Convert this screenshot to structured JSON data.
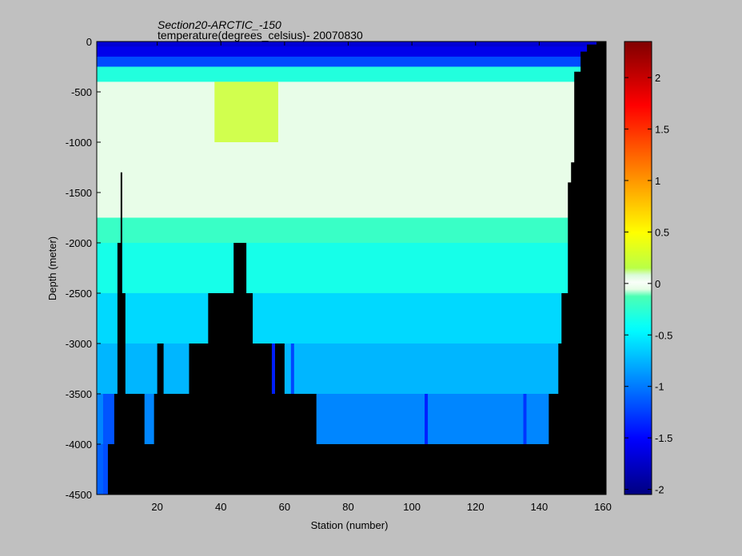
{
  "chart_data": {
    "type": "heatmap",
    "title": "Section20-ARCTIC_-150",
    "subtitle": "temperature(degrees_celsius)- 20070830",
    "xlabel": "Station (number)",
    "ylabel": "Depth (meter)",
    "xlim": [
      1,
      161
    ],
    "ylim": [
      -4500,
      0
    ],
    "x_ticks": [
      20,
      40,
      60,
      80,
      100,
      120,
      140,
      160
    ],
    "y_ticks": [
      0,
      -500,
      -1000,
      -1500,
      -2000,
      -2500,
      -3000,
      -3500,
      -4000,
      -4500
    ],
    "colorbar": {
      "range": [
        -2.05,
        2.35
      ],
      "ticks": [
        2,
        1.5,
        1,
        0.5,
        0,
        -0.5,
        -1,
        -1.5,
        -2
      ]
    },
    "layers": [
      {
        "depth_top": 0,
        "depth_bottom": -50,
        "temperature": -1.7
      },
      {
        "depth_top": -50,
        "depth_bottom": -150,
        "temperature": -1.6
      },
      {
        "depth_top": -150,
        "depth_bottom": -250,
        "temperature": -1.2
      },
      {
        "depth_top": -250,
        "depth_bottom": -400,
        "temperature": -0.3
      },
      {
        "depth_top": -400,
        "depth_bottom": -1750,
        "temperature": 0.05
      },
      {
        "depth_top": -1750,
        "depth_bottom": -2000,
        "temperature": -0.2
      },
      {
        "depth_top": -2000,
        "depth_bottom": -2500,
        "temperature": -0.35
      },
      {
        "depth_top": -2500,
        "depth_bottom": -3000,
        "temperature": -0.6
      },
      {
        "depth_top": -3000,
        "depth_bottom": -3500,
        "temperature": -0.75
      },
      {
        "depth_top": -3500,
        "depth_bottom": -4000,
        "temperature": -0.95
      },
      {
        "depth_top": -4000,
        "depth_bottom": -4500,
        "temperature": -1.1
      }
    ],
    "bottom_depth_profile": [
      [
        1,
        -4500
      ],
      [
        4.5,
        -4500
      ],
      [
        4.5,
        -4000
      ],
      [
        6.5,
        -4000
      ],
      [
        6.5,
        -3500
      ],
      [
        7.5,
        -3500
      ],
      [
        7.5,
        -2000
      ],
      [
        8.5,
        -2000
      ],
      [
        8.5,
        -1300
      ],
      [
        9,
        -1300
      ],
      [
        9,
        -2500
      ],
      [
        10,
        -2500
      ],
      [
        10,
        -3500
      ],
      [
        16,
        -3500
      ],
      [
        16,
        -4000
      ],
      [
        19,
        -4000
      ],
      [
        19,
        -3500
      ],
      [
        20,
        -3500
      ],
      [
        20,
        -3000
      ],
      [
        22,
        -3000
      ],
      [
        22,
        -3500
      ],
      [
        30,
        -3500
      ],
      [
        30,
        -3000
      ],
      [
        36,
        -3000
      ],
      [
        36,
        -2500
      ],
      [
        44,
        -2500
      ],
      [
        44,
        -2000
      ],
      [
        48,
        -2000
      ],
      [
        48,
        -2500
      ],
      [
        50,
        -2500
      ],
      [
        50,
        -3000
      ],
      [
        56,
        -3000
      ],
      [
        56,
        -3500
      ],
      [
        57,
        -3500
      ],
      [
        57,
        -3000
      ],
      [
        60,
        -3000
      ],
      [
        60,
        -3500
      ],
      [
        70,
        -3500
      ],
      [
        70,
        -4000
      ],
      [
        143,
        -4000
      ],
      [
        143,
        -3500
      ],
      [
        146,
        -3500
      ],
      [
        146,
        -3000
      ],
      [
        147,
        -3000
      ],
      [
        147,
        -2500
      ],
      [
        149,
        -2500
      ],
      [
        149,
        -1400
      ],
      [
        150,
        -1400
      ],
      [
        150,
        -1200
      ],
      [
        151,
        -1200
      ],
      [
        151,
        -300
      ],
      [
        153,
        -300
      ],
      [
        153,
        -100
      ],
      [
        155,
        -100
      ],
      [
        155,
        -30
      ],
      [
        158,
        -30
      ],
      [
        158,
        0
      ],
      [
        161,
        0
      ]
    ],
    "anomalies": [
      {
        "x_range": [
          56,
          57
        ],
        "depth_range": [
          -3000,
          -3500
        ],
        "temperature": -1.5
      },
      {
        "x_range": [
          104,
          105
        ],
        "depth_range": [
          -3500,
          -4000
        ],
        "temperature": -1.45
      },
      {
        "x_range": [
          135,
          136
        ],
        "depth_range": [
          -3500,
          -4000
        ],
        "temperature": -1.35
      },
      {
        "x_range": [
          62,
          63
        ],
        "depth_range": [
          -3000,
          -3500
        ],
        "temperature": -1.3
      },
      {
        "x_range": [
          3,
          7
        ],
        "depth_range": [
          -3500,
          -4500
        ],
        "temperature": -1.2
      },
      {
        "x_range": [
          38,
          58
        ],
        "depth_range": [
          -400,
          -1000
        ],
        "temperature": 0.25
      }
    ]
  }
}
